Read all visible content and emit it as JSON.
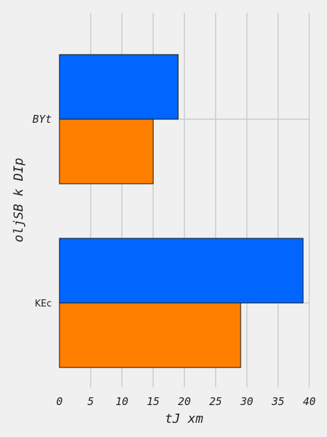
{
  "chart_data": {
    "type": "bar",
    "orientation": "horizontal",
    "categories": [
      "BYt",
      "KEc"
    ],
    "series": [
      {
        "values": [
          19,
          39
        ],
        "color": "#0066ff"
      },
      {
        "values": [
          15,
          29
        ],
        "color": "#ff8000"
      }
    ],
    "xlabel": "tJ  xm",
    "ylabel": "oljSB k  DIp",
    "xlim": [
      0,
      40
    ],
    "xticks": [
      0,
      5,
      10,
      15,
      20,
      25,
      30,
      35,
      40
    ],
    "xtick_labels": [
      "0",
      "5",
      "10",
      "15",
      "20",
      "25",
      "30",
      "35",
      "40"
    ],
    "grid": true,
    "background": "#f0f0f0"
  }
}
